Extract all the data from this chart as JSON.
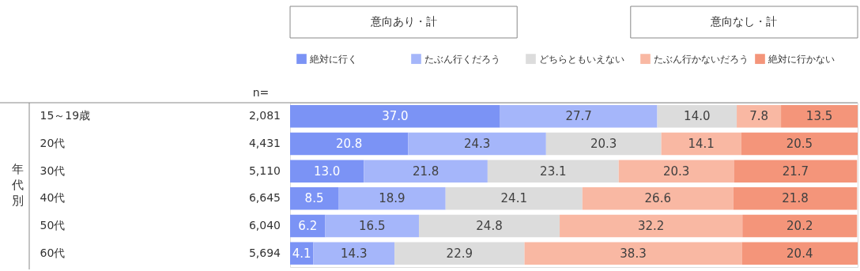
{
  "chart_data": {
    "type": "bar",
    "orientation": "horizontal",
    "stacked": true,
    "legend": "top",
    "categories": [
      "15～19歳",
      "20代",
      "30代",
      "40代",
      "50代",
      "60代"
    ],
    "series": [
      {
        "name": "絶対に行く",
        "color": "#7b93f5",
        "values": [
          37.0,
          20.8,
          13.0,
          8.5,
          6.2,
          4.1
        ],
        "value_labels": [
          "37.0",
          "20.8",
          "13.0",
          "8.5",
          "6.2",
          "4.1"
        ]
      },
      {
        "name": "たぶん行くだろう",
        "color": "#a5b6fa",
        "values": [
          27.7,
          24.3,
          21.8,
          18.9,
          16.5,
          14.3
        ],
        "value_labels": [
          "27.7",
          "24.3",
          "21.8",
          "18.9",
          "16.5",
          "14.3"
        ]
      },
      {
        "name": "どちらともいえない",
        "color": "#dcdcdc",
        "values": [
          14.0,
          20.3,
          23.1,
          24.1,
          24.8,
          22.9
        ],
        "value_labels": [
          "14.0",
          "20.3",
          "23.1",
          "24.1",
          "24.8",
          "22.9"
        ]
      },
      {
        "name": "たぶん行かないだろう",
        "color": "#f9b8a3",
        "values": [
          7.8,
          14.1,
          20.3,
          26.6,
          32.2,
          38.3
        ],
        "value_labels": [
          "7.8",
          "14.1",
          "20.3",
          "26.6",
          "32.2",
          "38.3"
        ]
      },
      {
        "name": "絶対に行かない",
        "color": "#f4957a",
        "values": [
          13.5,
          20.5,
          21.7,
          21.8,
          20.2,
          20.4
        ],
        "value_labels": [
          "13.5",
          "20.5",
          "21.7",
          "21.8",
          "20.2",
          "20.4"
        ]
      }
    ],
    "annotations": [
      "意向あり・計",
      "意向なし・計",
      "n=",
      "年代別",
      "2,081",
      "4,431",
      "5,110",
      "6,645",
      "6,040",
      "5,694"
    ]
  }
}
